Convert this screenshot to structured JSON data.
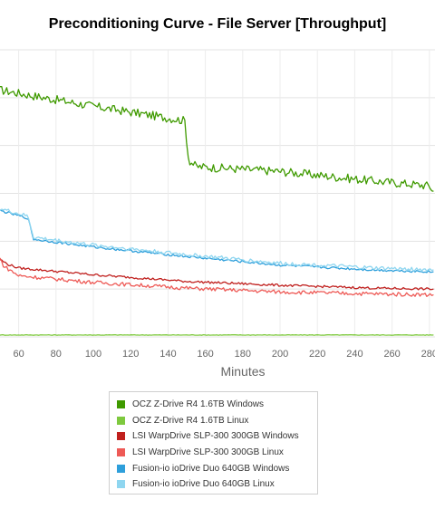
{
  "chart_data": {
    "type": "line",
    "title": "Preconditioning Curve - File Server [Throughput]",
    "xlabel": "Minutes",
    "ylabel": "",
    "xlim": [
      50,
      283
    ],
    "ylim": [
      0,
      300
    ],
    "x_ticks": [
      60,
      80,
      100,
      120,
      140,
      160,
      180,
      200,
      220,
      240,
      260,
      280
    ],
    "x_tick_labels": [
      "60",
      "80",
      "100",
      "120",
      "140",
      "160",
      "180",
      "200",
      "220",
      "240",
      "260",
      "280"
    ],
    "grid": true,
    "legend_position": "bottom",
    "series": [
      {
        "name": "OCZ Z-Drive R4 1.6TB Windows",
        "color": "#3f9a00",
        "points": [
          [
            50,
            258
          ],
          [
            100,
            241
          ],
          [
            149,
            226
          ],
          [
            151,
            185
          ],
          [
            155,
            178
          ],
          [
            200,
            173
          ],
          [
            250,
            163
          ],
          [
            280,
            158
          ],
          [
            283,
            150
          ]
        ],
        "noise": 4.5
      },
      {
        "name": "OCZ Z-Drive R4 1.6TB Linux",
        "color": "#7ec93e",
        "points": [
          [
            50,
            2
          ],
          [
            283,
            2
          ]
        ],
        "noise": 0.3
      },
      {
        "name": "LSI WarpDrive SLP-300 300GB Windows",
        "color": "#c0201e",
        "points": [
          [
            50,
            81
          ],
          [
            54,
            76
          ],
          [
            60,
            72
          ],
          [
            100,
            65
          ],
          [
            150,
            58
          ],
          [
            200,
            54
          ],
          [
            250,
            51
          ],
          [
            283,
            50
          ]
        ],
        "noise": 1.2
      },
      {
        "name": "LSI WarpDrive SLP-300 300GB Linux",
        "color": "#ee5a56",
        "points": [
          [
            50,
            82
          ],
          [
            52,
            74
          ],
          [
            60,
            64
          ],
          [
            100,
            57
          ],
          [
            150,
            51
          ],
          [
            200,
            47
          ],
          [
            250,
            45
          ],
          [
            283,
            44
          ]
        ],
        "noise": 2.0
      },
      {
        "name": "Fusion-io ioDrive Duo 640GB Windows",
        "color": "#2e9fdb",
        "points": [
          [
            50,
            132
          ],
          [
            65,
            124
          ],
          [
            68,
            102
          ],
          [
            100,
            94
          ],
          [
            150,
            84
          ],
          [
            200,
            75
          ],
          [
            250,
            70
          ],
          [
            283,
            68
          ]
        ],
        "noise": 1.2
      },
      {
        "name": "Fusion-io ioDrive Duo 640GB Linux",
        "color": "#8fd6f0",
        "points": [
          [
            50,
            134
          ],
          [
            65,
            126
          ],
          [
            68,
            104
          ],
          [
            100,
            96
          ],
          [
            150,
            86
          ],
          [
            200,
            77
          ],
          [
            250,
            72
          ],
          [
            283,
            70
          ]
        ],
        "noise": 2.0
      }
    ]
  }
}
